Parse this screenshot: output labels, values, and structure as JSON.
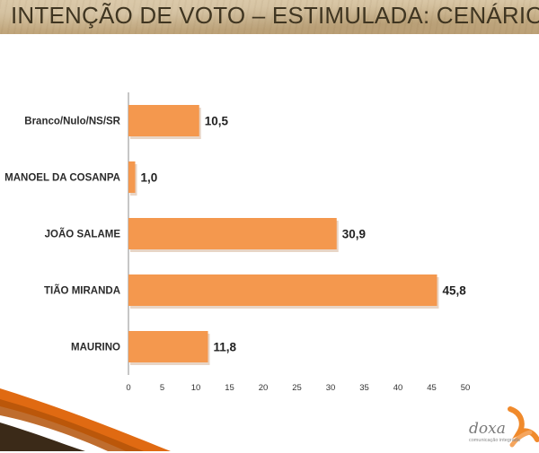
{
  "title": "INTENÇÃO DE VOTO – ESTIMULADA: CENÁRIO V",
  "colors": {
    "bar": "#f4984e",
    "bar_shadow": "#d9b9a0",
    "axis": "#8c8c8c",
    "swoosh": "#e06a12",
    "logo_mark": "#f08a2c"
  },
  "chart_data": {
    "type": "bar",
    "orientation": "horizontal",
    "categories": [
      "Branco/Nulo/NS/SR",
      "MANOEL DA COSANPA",
      "JOÃO SALAME",
      "TIÃO MIRANDA",
      "MAURINO"
    ],
    "values": [
      10.5,
      1.0,
      30.9,
      45.8,
      11.8
    ],
    "value_labels": [
      "10,5",
      "1,0",
      "30,9",
      "45,8",
      "11,8"
    ],
    "xlim": [
      0,
      50
    ],
    "xticks": [
      0,
      5,
      10,
      15,
      20,
      25,
      30,
      35,
      40,
      45,
      50
    ],
    "grid": false,
    "legend": "none",
    "xlabel": "",
    "ylabel": ""
  },
  "logo": {
    "name": "doxa",
    "tagline": "comunicação integrada"
  }
}
